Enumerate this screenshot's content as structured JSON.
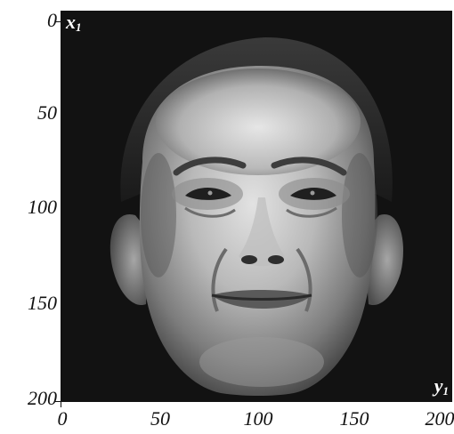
{
  "figure": {
    "axis_x1": "x",
    "axis_x1_sub": "1",
    "axis_y1": "y",
    "axis_y1_sub": "1",
    "y_ticks": [
      "0",
      "50",
      "100",
      "150",
      "200"
    ],
    "x_ticks": [
      "0",
      "50",
      "100",
      "150",
      "200"
    ]
  },
  "colors": {
    "background": "#121212",
    "face_light": "#c8c8c8",
    "face_shadow": "#6a6a6a",
    "hair": "#2a2a2a"
  }
}
